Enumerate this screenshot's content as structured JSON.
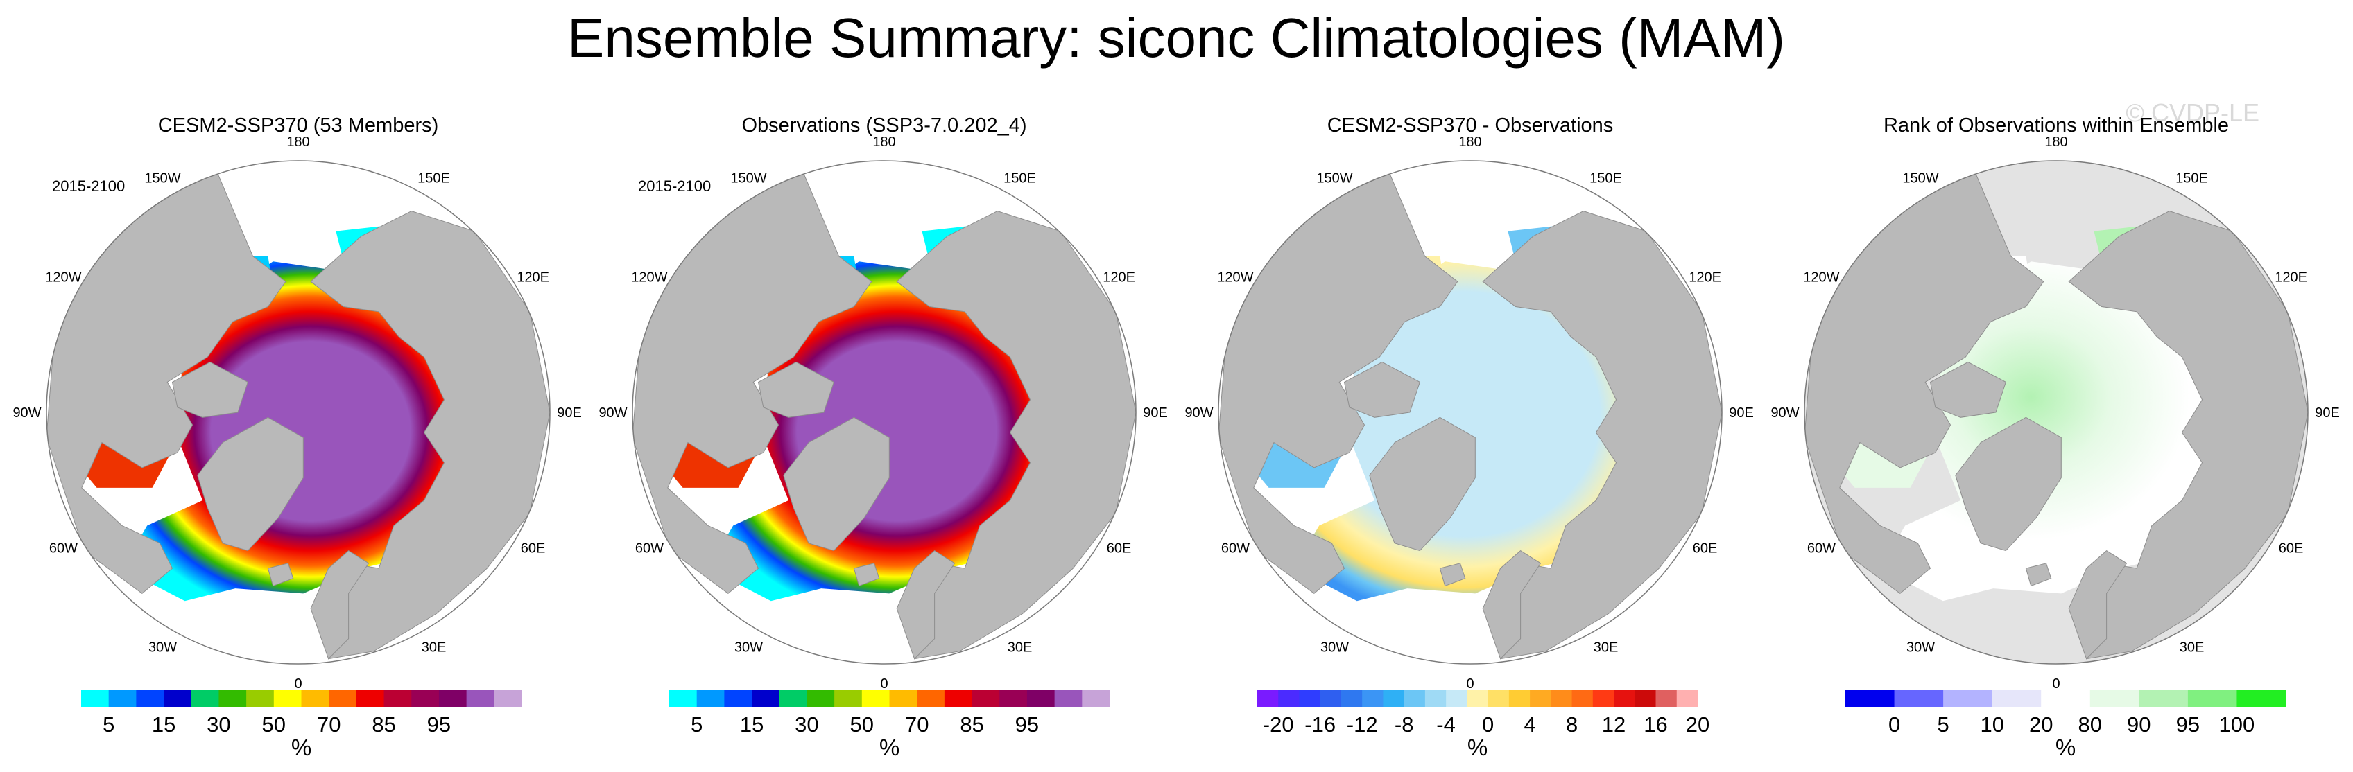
{
  "figure": {
    "title": "Ensemble Summary: siconc Climatologies (MAM)",
    "watermark": "© CVDP-LE"
  },
  "chart_data": [
    {
      "type": "polar-map",
      "title": "CESM2-SSP370 (53 Members)",
      "title_color": "#1f6a8a",
      "period": "2015-2100",
      "variable": "siconc",
      "season": "MAM",
      "projection": "north-polar-stereographic",
      "longitude_labels": [
        "180",
        "150E",
        "120E",
        "90E",
        "60E",
        "30E",
        "0",
        "30W",
        "60W",
        "90W",
        "120W",
        "150W"
      ],
      "colorbar": {
        "units": "%",
        "boundaries": [
          5,
          10,
          15,
          20,
          30,
          40,
          50,
          60,
          70,
          80,
          85,
          90,
          95
        ],
        "tick_labels": [
          "5",
          "15",
          "30",
          "50",
          "70",
          "85",
          "95"
        ],
        "tick_values": [
          5,
          15,
          30,
          50,
          70,
          85,
          95
        ],
        "colors": [
          "#00ffff",
          "#0099ff",
          "#0044ff",
          "#0000cc",
          "#00cc66",
          "#33bb00",
          "#99cc00",
          "#ffff00",
          "#ffbb00",
          "#ff6600",
          "#ee0000",
          "#bb0033",
          "#990055",
          "#7f0066",
          "#9955bb",
          "#c7a3d8"
        ]
      },
      "ice_style": "sic",
      "extent": "model"
    },
    {
      "type": "polar-map",
      "title": "Observations (SSP3-7.0.202_4)",
      "title_color": "#000000",
      "period": "2015-2100",
      "variable": "siconc",
      "season": "MAM",
      "projection": "north-polar-stereographic",
      "longitude_labels": [
        "180",
        "150E",
        "120E",
        "90E",
        "60E",
        "30E",
        "0",
        "30W",
        "60W",
        "90W",
        "120W",
        "150W"
      ],
      "colorbar": {
        "units": "%",
        "boundaries": [
          5,
          10,
          15,
          20,
          30,
          40,
          50,
          60,
          70,
          80,
          85,
          90,
          95
        ],
        "tick_labels": [
          "5",
          "15",
          "30",
          "50",
          "70",
          "85",
          "95"
        ],
        "tick_values": [
          5,
          15,
          30,
          50,
          70,
          85,
          95
        ],
        "colors": [
          "#00ffff",
          "#0099ff",
          "#0044ff",
          "#0000cc",
          "#00cc66",
          "#33bb00",
          "#99cc00",
          "#ffff00",
          "#ffbb00",
          "#ff6600",
          "#ee0000",
          "#bb0033",
          "#990055",
          "#7f0066",
          "#9955bb",
          "#c7a3d8"
        ]
      },
      "ice_style": "sic",
      "extent": "obs"
    },
    {
      "type": "polar-map",
      "title": "CESM2-SSP370 - Observations",
      "title_color": "#000000",
      "period": "",
      "variable": "siconc difference",
      "season": "MAM",
      "projection": "north-polar-stereographic",
      "longitude_labels": [
        "180",
        "150E",
        "120E",
        "90E",
        "60E",
        "30E",
        "0",
        "30W",
        "60W",
        "90W",
        "120W",
        "150W"
      ],
      "colorbar": {
        "units": "%",
        "boundaries": [
          -20,
          -18,
          -16,
          -14,
          -12,
          -10,
          -8,
          -6,
          -4,
          -2,
          0,
          2,
          4,
          6,
          8,
          10,
          12,
          14,
          16,
          18,
          20
        ],
        "tick_labels": [
          "-20",
          "-16",
          "-12",
          "-8",
          "-4",
          "0",
          "4",
          "8",
          "12",
          "16",
          "20"
        ],
        "tick_values": [
          -20,
          -16,
          -12,
          -8,
          -4,
          0,
          4,
          8,
          12,
          16,
          20
        ],
        "colors": [
          "#7a1bff",
          "#4b2bff",
          "#2f3dff",
          "#2f5ff0",
          "#2f78f0",
          "#3b95f5",
          "#2fb0f5",
          "#6cc6f5",
          "#9fdaf5",
          "#c6e9f7",
          "#fff2a8",
          "#ffe066",
          "#ffcc33",
          "#ffaa22",
          "#ff8c1a",
          "#ff6a14",
          "#ff3a14",
          "#e6120f",
          "#cc0a0a",
          "#e06060",
          "#ffb0b0"
        ]
      },
      "ice_style": "diff",
      "extent": "model"
    },
    {
      "type": "polar-map",
      "title": "Rank of Observations within Ensemble",
      "title_color": "#000000",
      "period": "",
      "variable": "rank",
      "season": "MAM",
      "projection": "north-polar-stereographic",
      "longitude_labels": [
        "180",
        "150E",
        "120E",
        "90E",
        "60E",
        "30E",
        "0",
        "30W",
        "60W",
        "90W",
        "120W",
        "150W"
      ],
      "colorbar": {
        "units": "%",
        "boundaries": [
          0,
          5,
          10,
          20,
          80,
          90,
          95,
          100
        ],
        "tick_labels": [
          "0",
          "5",
          "10",
          "20",
          "80",
          "90",
          "95",
          "100"
        ],
        "tick_values": [
          0,
          5,
          10,
          20,
          80,
          90,
          95,
          100
        ],
        "colors": [
          "#0000ee",
          "#6666ff",
          "#b3b3ff",
          "#e6e6fa",
          "#ffffff",
          "#e6fae6",
          "#b3f2b3",
          "#80f080",
          "#22ee22"
        ]
      },
      "ice_style": "rank",
      "extent": "model"
    }
  ]
}
